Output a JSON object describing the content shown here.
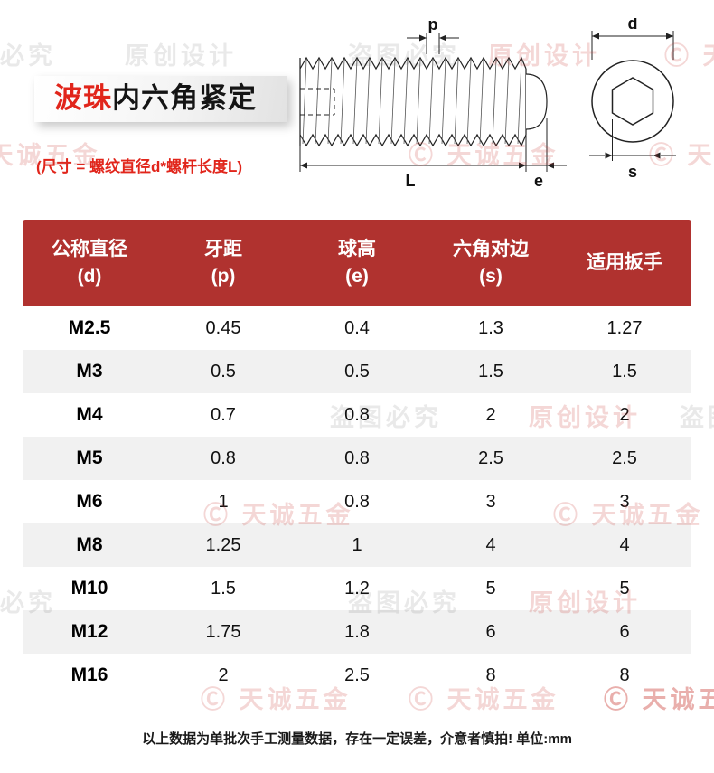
{
  "header": {
    "title_accent": "波珠",
    "title_rest": "内六角紧定",
    "size_note": "(尺寸 = 螺纹直径d*螺杆长度L)"
  },
  "diagram": {
    "labels": {
      "pitch": "p",
      "length": "L",
      "ball_height": "e",
      "diameter": "d",
      "hex_flats": "s"
    }
  },
  "table": {
    "headers": [
      {
        "line1": "公称直径",
        "line2": "(d)"
      },
      {
        "line1": "牙距",
        "line2": "(p)"
      },
      {
        "line1": "球高",
        "line2": "(e)"
      },
      {
        "line1": "六角对边",
        "line2": "(s)"
      },
      {
        "line1": "适用扳手",
        "line2": ""
      }
    ],
    "rows": [
      [
        "M2.5",
        "0.45",
        "0.4",
        "1.3",
        "1.27"
      ],
      [
        "M3",
        "0.5",
        "0.5",
        "1.5",
        "1.5"
      ],
      [
        "M4",
        "0.7",
        "0.8",
        "2",
        "2"
      ],
      [
        "M5",
        "0.8",
        "0.8",
        "2.5",
        "2.5"
      ],
      [
        "M6",
        "1",
        "0.8",
        "3",
        "3"
      ],
      [
        "M8",
        "1.25",
        "1",
        "4",
        "4"
      ],
      [
        "M10",
        "1.5",
        "1.2",
        "5",
        "5"
      ],
      [
        "M12",
        "1.75",
        "1.8",
        "6",
        "6"
      ],
      [
        "M16",
        "2",
        "2.5",
        "8",
        "8"
      ]
    ]
  },
  "footer": {
    "note": "以上数据为单批次手工测量数据，存在一定误差，介意者慎拍! 单位:mm"
  },
  "watermarks": {
    "original_design": "原创设计",
    "anti_piracy": "盗图必究",
    "brand": "Ⓒ 天诚五金"
  },
  "colors": {
    "header_bg": "#b0322f",
    "accent_red": "#e1251b",
    "row_alt": "#f1f1f1"
  }
}
